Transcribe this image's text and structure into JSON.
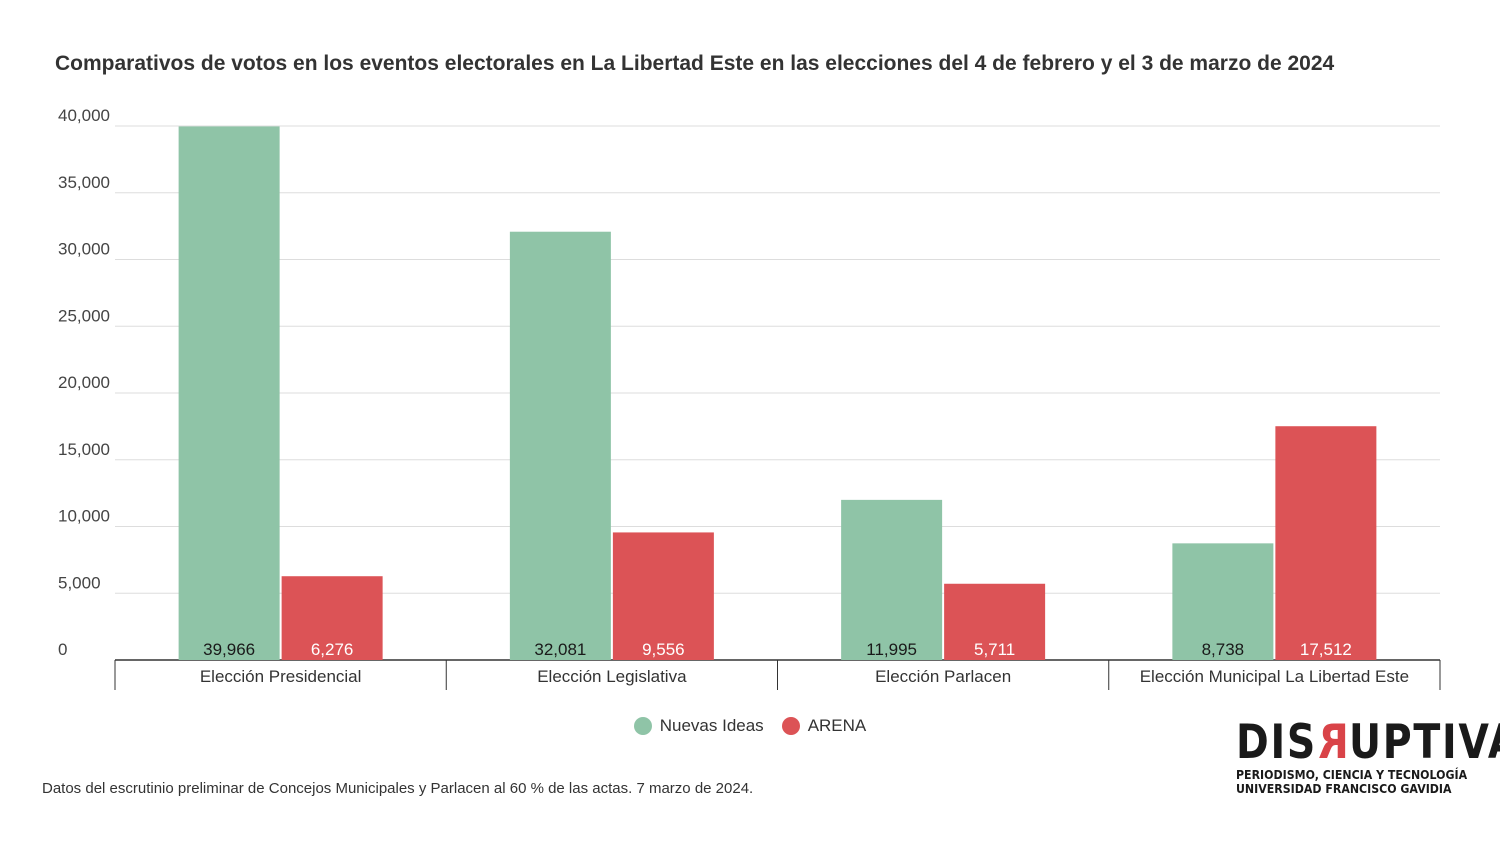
{
  "chart_data": {
    "type": "bar",
    "title": "Comparativos de votos en los eventos electorales en La Libertad Este en las elecciones del 4 de febrero y el 3 de marzo de 2024",
    "categories": [
      "Elección Presidencial",
      "Elección Legislativa",
      "Elección Parlacen",
      "Elección Municipal La Libertad Este"
    ],
    "series": [
      {
        "name": "Nuevas Ideas",
        "color": "#8fc4a7",
        "values": [
          39966,
          32081,
          11995,
          8738
        ],
        "labels": [
          "39,966",
          "32,081",
          "11,995",
          "8,738"
        ]
      },
      {
        "name": "ARENA",
        "color": "#dc5356",
        "values": [
          6276,
          9556,
          5711,
          17512
        ],
        "labels": [
          "6,276",
          "9,556",
          "5,711",
          "17,512"
        ]
      }
    ],
    "ylim": [
      0,
      40000
    ],
    "yticks": [
      0,
      5000,
      10000,
      15000,
      20000,
      25000,
      30000,
      35000,
      40000
    ],
    "ytick_labels": [
      "0",
      "5,000",
      "10,000",
      "15,000",
      "20,000",
      "25,000",
      "30,000",
      "35,000",
      "40,000"
    ],
    "grid": true,
    "legend_position": "bottom-center"
  },
  "footnote": "Datos del escrutinio preliminar de Concejos Municipales y Parlacen al 60 % de las actas. 7 marzo de 2024.",
  "logo": {
    "wordmark_before": "DIS",
    "wordmark_r": "R",
    "wordmark_after": "UPTIVA",
    "line1": "PERIODISMO, CIENCIA Y TECNOLOGÍA",
    "line2": "UNIVERSIDAD FRANCISCO GAVIDIA"
  }
}
